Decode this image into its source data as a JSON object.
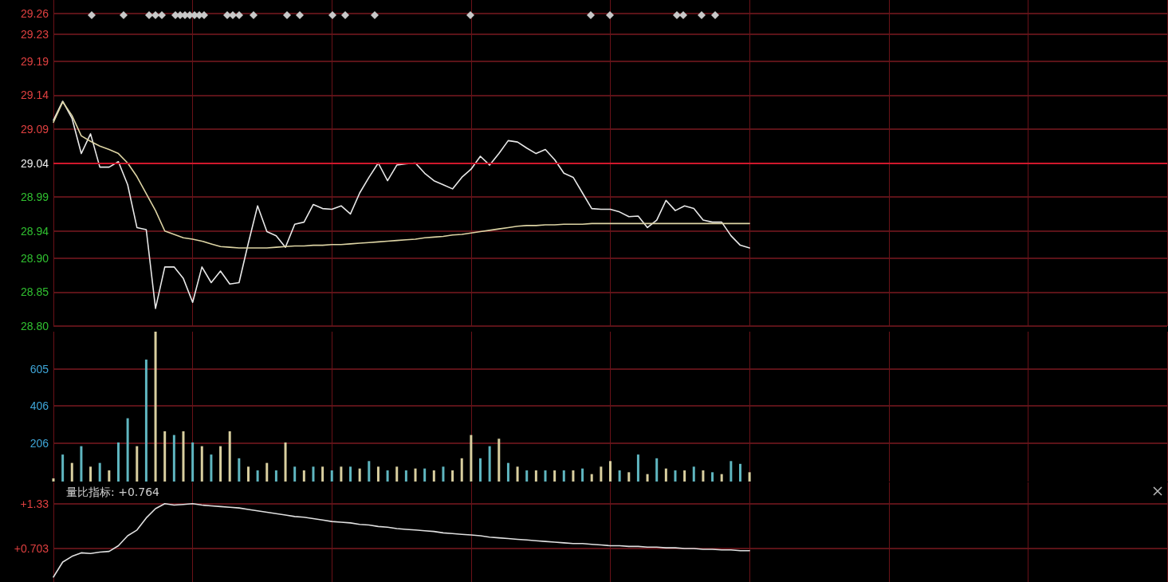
{
  "chart_data": [
    {
      "type": "line",
      "categories": [
        null,
        null,
        null,
        null,
        null,
        null,
        null,
        null,
        null,
        null,
        null,
        null,
        null,
        null,
        null,
        null,
        null,
        null,
        null,
        null,
        null,
        null,
        null,
        null,
        null,
        null,
        null,
        null,
        null,
        null,
        null,
        null,
        null,
        null,
        null,
        null,
        null,
        null,
        null,
        null,
        null,
        null,
        null,
        null,
        null,
        null,
        null,
        null,
        null,
        null,
        null,
        null,
        null,
        null,
        null,
        null,
        null,
        null,
        null,
        null,
        null,
        null,
        null,
        null,
        null,
        null,
        null,
        null,
        null,
        null,
        null,
        null,
        null,
        null,
        null,
        null,
        null,
        null,
        null,
        null,
        null,
        null,
        null,
        null,
        null,
        null,
        null,
        null,
        null,
        null,
        null,
        null,
        null,
        null,
        null,
        null,
        null,
        null,
        null,
        null,
        null,
        null,
        null,
        null,
        null,
        null,
        null,
        null,
        null,
        null,
        null,
        null,
        null,
        null,
        null,
        null,
        null,
        null,
        null,
        null,
        null
      ],
      "series": [
        {
          "color": "#e8e8e8",
          "values": [
            29.103,
            29.131,
            29.106,
            29.054,
            29.083,
            29.034,
            29.034,
            29.042,
            29.008,
            28.945,
            28.942,
            28.826,
            28.887,
            28.887,
            28.87,
            28.835,
            28.887,
            28.864,
            28.881,
            28.862,
            28.864,
            28.922,
            28.977,
            28.939,
            28.933,
            28.916,
            28.95,
            28.953,
            28.979,
            28.973,
            28.972,
            28.977,
            28.965,
            28.996,
            29.019,
            29.04,
            29.014,
            29.037,
            29.039,
            29.04,
            29.025,
            29.014,
            29.008,
            29.002,
            29.019,
            29.031,
            29.05,
            29.037,
            29.054,
            29.073,
            29.071,
            29.062,
            29.054,
            29.06,
            29.045,
            29.025,
            29.019,
            28.996,
            28.973,
            28.972,
            28.972,
            28.968,
            28.961,
            28.962,
            28.945,
            28.956,
            28.985,
            28.97,
            28.977,
            28.973,
            28.956,
            28.953,
            28.953,
            28.933,
            28.919,
            28.915,
            null,
            null,
            null,
            null,
            null,
            null,
            null,
            null,
            null,
            null,
            null,
            null,
            null,
            null,
            null,
            null,
            null,
            null,
            null,
            null,
            null,
            null,
            null,
            null,
            null,
            null,
            null,
            null,
            null,
            null,
            null,
            null,
            null,
            null,
            null,
            null,
            null,
            null,
            null,
            null,
            null,
            null,
            null,
            null,
            null
          ]
        },
        {
          "color": "#ddd4a4",
          "values": [
            29.1,
            29.13,
            29.11,
            29.08,
            29.072,
            29.065,
            29.06,
            29.054,
            29.04,
            29.02,
            28.995,
            28.97,
            28.94,
            28.935,
            28.93,
            28.928,
            28.925,
            28.921,
            28.917,
            28.916,
            28.915,
            28.915,
            28.915,
            28.915,
            28.916,
            28.917,
            28.918,
            28.918,
            28.919,
            28.919,
            28.92,
            28.92,
            28.921,
            28.922,
            28.923,
            28.924,
            28.925,
            28.926,
            28.927,
            28.928,
            28.93,
            28.931,
            28.932,
            28.934,
            28.935,
            28.937,
            28.939,
            28.941,
            28.943,
            28.945,
            28.947,
            28.948,
            28.948,
            28.949,
            28.949,
            28.95,
            28.95,
            28.95,
            28.951,
            28.951,
            28.951,
            28.951,
            28.951,
            28.951,
            28.951,
            28.951,
            28.951,
            28.951,
            28.951,
            28.951,
            28.951,
            28.951,
            28.951,
            28.951,
            28.951,
            28.951,
            null,
            null,
            null,
            null,
            null,
            null,
            null,
            null,
            null,
            null,
            null,
            null,
            null,
            null,
            null,
            null,
            null,
            null,
            null,
            null,
            null,
            null,
            null,
            null,
            null,
            null,
            null,
            null,
            null,
            null,
            null,
            null,
            null,
            null,
            null,
            null,
            null,
            null,
            null,
            null,
            null,
            null,
            null,
            null,
            null
          ]
        }
      ],
      "ylim": [
        28.8,
        29.28
      ],
      "yticks": [
        {
          "value": 28.8,
          "label": "28.80"
        },
        {
          "value": 28.85,
          "label": "28.85"
        },
        {
          "value": 28.9,
          "label": "28.90"
        },
        {
          "value": 28.94,
          "label": "28.94"
        },
        {
          "value": 28.99,
          "label": "28.99"
        },
        {
          "value": 29.04,
          "label": "29.04"
        },
        {
          "value": 29.09,
          "label": "29.09"
        },
        {
          "value": 29.14,
          "label": "29.14"
        },
        {
          "value": 29.19,
          "label": "29.19"
        },
        {
          "value": 29.23,
          "label": "29.23"
        },
        {
          "value": 29.26,
          "label": "29.26"
        }
      ],
      "ref_lines": [
        {
          "axis": "y",
          "value": 29.04,
          "color": "#d0182c"
        }
      ],
      "grid": true,
      "marker": "none",
      "line_style": "solid",
      "tick_labels": "y"
    },
    {
      "type": "bar",
      "categories": [
        null,
        null,
        null,
        null,
        null,
        null,
        null,
        null,
        null,
        null,
        null,
        null,
        null,
        null,
        null,
        null,
        null,
        null,
        null,
        null,
        null,
        null,
        null,
        null,
        null,
        null,
        null,
        null,
        null,
        null,
        null,
        null,
        null,
        null,
        null,
        null,
        null,
        null,
        null,
        null,
        null,
        null,
        null,
        null,
        null,
        null,
        null,
        null,
        null,
        null,
        null,
        null,
        null,
        null,
        null,
        null,
        null,
        null,
        null,
        null,
        null,
        null,
        null,
        null,
        null,
        null,
        null,
        null,
        null,
        null,
        null,
        null,
        null,
        null,
        null,
        null,
        null,
        null,
        null,
        null,
        null,
        null,
        null,
        null,
        null,
        null,
        null,
        null,
        null,
        null,
        null,
        null,
        null,
        null,
        null,
        null,
        null,
        null,
        null,
        null,
        null,
        null,
        null,
        null,
        null,
        null,
        null,
        null,
        null,
        null,
        null,
        null,
        null,
        null,
        null,
        null,
        null,
        null,
        null,
        null,
        null
      ],
      "values": [
        17,
        145,
        100,
        190,
        80,
        100,
        60,
        210,
        340,
        190,
        655,
        805,
        270,
        250,
        270,
        210,
        190,
        145,
        190,
        270,
        125,
        80,
        60,
        100,
        60,
        210,
        80,
        60,
        80,
        80,
        60,
        80,
        80,
        70,
        110,
        80,
        60,
        80,
        60,
        70,
        70,
        60,
        80,
        60,
        125,
        250,
        125,
        190,
        230,
        100,
        80,
        60,
        60,
        60,
        60,
        60,
        60,
        70,
        40,
        80,
        110,
        60,
        50,
        145,
        40,
        125,
        70,
        60,
        60,
        80,
        60,
        50,
        40,
        110,
        95,
        50,
        null,
        null,
        null,
        null,
        null,
        null,
        null,
        null,
        null,
        null,
        null,
        null,
        null,
        null,
        null,
        null,
        null,
        null,
        null,
        null,
        null,
        null,
        null,
        null,
        null,
        null,
        null,
        null,
        null,
        null,
        null,
        null,
        null,
        null,
        null,
        null,
        null,
        null,
        null,
        null,
        null,
        null,
        null,
        null,
        null
      ],
      "colors": [
        "#d9cf9f",
        "#5fb6c0",
        "#d9cf9f",
        "#5fb6c0",
        "#d9cf9f",
        "#5fb6c0",
        "#d9cf9f",
        "#5fb6c0",
        "#5fb6c0",
        "#d9cf9f",
        "#5fb6c0",
        "#d9cf9f",
        "#d9cf9f",
        "#5fb6c0",
        "#d9cf9f",
        "#5fb6c0",
        "#d9cf9f",
        "#5fb6c0",
        "#d9cf9f",
        "#d9cf9f",
        "#5fb6c0",
        "#d9cf9f",
        "#5fb6c0",
        "#d9cf9f",
        "#5fb6c0",
        "#d9cf9f",
        "#5fb6c0",
        "#d9cf9f",
        "#5fb6c0",
        "#d9cf9f",
        "#5fb6c0",
        "#d9cf9f",
        "#5fb6c0",
        "#d9cf9f",
        "#5fb6c0",
        "#d9cf9f",
        "#5fb6c0",
        "#d9cf9f",
        "#5fb6c0",
        "#d9cf9f",
        "#5fb6c0",
        "#d9cf9f",
        "#5fb6c0",
        "#d9cf9f",
        "#d9cf9f",
        "#d9cf9f",
        "#5fb6c0",
        "#5fb6c0",
        "#d9cf9f",
        "#5fb6c0",
        "#d9cf9f",
        "#5fb6c0",
        "#d9cf9f",
        "#5fb6c0",
        "#d9cf9f",
        "#5fb6c0",
        "#d9cf9f",
        "#5fb6c0",
        "#d9cf9f",
        "#d9cf9f",
        "#d9cf9f",
        "#5fb6c0",
        "#d9cf9f",
        "#5fb6c0",
        "#d9cf9f",
        "#5fb6c0",
        "#d9cf9f",
        "#5fb6c0",
        "#d9cf9f",
        "#5fb6c0",
        "#d9cf9f",
        "#5fb6c0",
        "#d9cf9f",
        "#5fb6c0",
        "#5fb6c0",
        "#d9cf9f",
        null,
        null,
        null,
        null,
        null,
        null,
        null,
        null,
        null,
        null,
        null,
        null,
        null,
        null,
        null,
        null,
        null,
        null,
        null,
        null,
        null,
        null,
        null,
        null,
        null,
        null,
        null,
        null,
        null,
        null,
        null,
        null,
        null,
        null,
        null,
        null,
        null,
        null,
        null,
        null,
        null,
        null,
        null,
        null,
        null
      ],
      "ylim": [
        0,
        805
      ],
      "yticks": [
        206,
        406,
        605
      ],
      "grid": true,
      "tick_labels": "y"
    },
    {
      "type": "line",
      "title": "量比指标: +0.764",
      "categories": [
        null,
        null,
        null,
        null,
        null,
        null,
        null,
        null,
        null,
        null,
        null,
        null,
        null,
        null,
        null,
        null,
        null,
        null,
        null,
        null,
        null,
        null,
        null,
        null,
        null,
        null,
        null,
        null,
        null,
        null,
        null,
        null,
        null,
        null,
        null,
        null,
        null,
        null,
        null,
        null,
        null,
        null,
        null,
        null,
        null,
        null,
        null,
        null,
        null,
        null,
        null,
        null,
        null,
        null,
        null,
        null,
        null,
        null,
        null,
        null,
        null,
        null,
        null,
        null,
        null,
        null,
        null,
        null,
        null,
        null,
        null,
        null,
        null,
        null,
        null,
        null,
        null,
        null,
        null,
        null,
        null,
        null,
        null,
        null,
        null,
        null,
        null,
        null,
        null,
        null,
        null,
        null,
        null,
        null,
        null,
        null,
        null,
        null,
        null,
        null,
        null,
        null,
        null,
        null,
        null,
        null,
        null,
        null,
        null,
        null,
        null,
        null,
        null,
        null,
        null,
        null,
        null,
        null,
        null,
        null,
        null
      ],
      "series": [
        {
          "color": "#e0e0e0",
          "values": [
            0.3,
            0.51,
            0.59,
            0.64,
            0.63,
            0.65,
            0.66,
            0.74,
            0.88,
            0.96,
            1.13,
            1.26,
            1.33,
            1.31,
            1.32,
            1.33,
            1.31,
            1.3,
            1.29,
            1.28,
            1.27,
            1.25,
            1.23,
            1.21,
            1.19,
            1.17,
            1.15,
            1.14,
            1.12,
            1.1,
            1.08,
            1.07,
            1.06,
            1.04,
            1.03,
            1.01,
            1.0,
            0.98,
            0.97,
            0.96,
            0.95,
            0.94,
            0.92,
            0.91,
            0.9,
            0.89,
            0.88,
            0.86,
            0.85,
            0.84,
            0.83,
            0.82,
            0.81,
            0.8,
            0.79,
            0.78,
            0.77,
            0.77,
            0.76,
            0.75,
            0.74,
            0.74,
            0.73,
            0.73,
            0.72,
            0.72,
            0.71,
            0.71,
            0.7,
            0.7,
            0.69,
            0.69,
            0.68,
            0.68,
            0.67,
            0.67,
            null,
            null,
            null,
            null,
            null,
            null,
            null,
            null,
            null,
            null,
            null,
            null,
            null,
            null,
            null,
            null,
            null,
            null,
            null,
            null,
            null,
            null,
            null,
            null,
            null,
            null,
            null,
            null,
            null,
            null,
            null,
            null,
            null,
            null,
            null,
            null,
            null,
            null,
            null,
            null,
            null,
            null,
            null,
            null,
            null
          ]
        }
      ],
      "ylim": [
        0.23,
        1.63
      ],
      "yticks": [
        {
          "value": 0.703,
          "label": "+0.703"
        },
        {
          "value": 1.33,
          "label": "+1.33"
        }
      ],
      "grid": true,
      "marker": "none",
      "line_style": "solid",
      "tick_labels": "y"
    }
  ]
}
